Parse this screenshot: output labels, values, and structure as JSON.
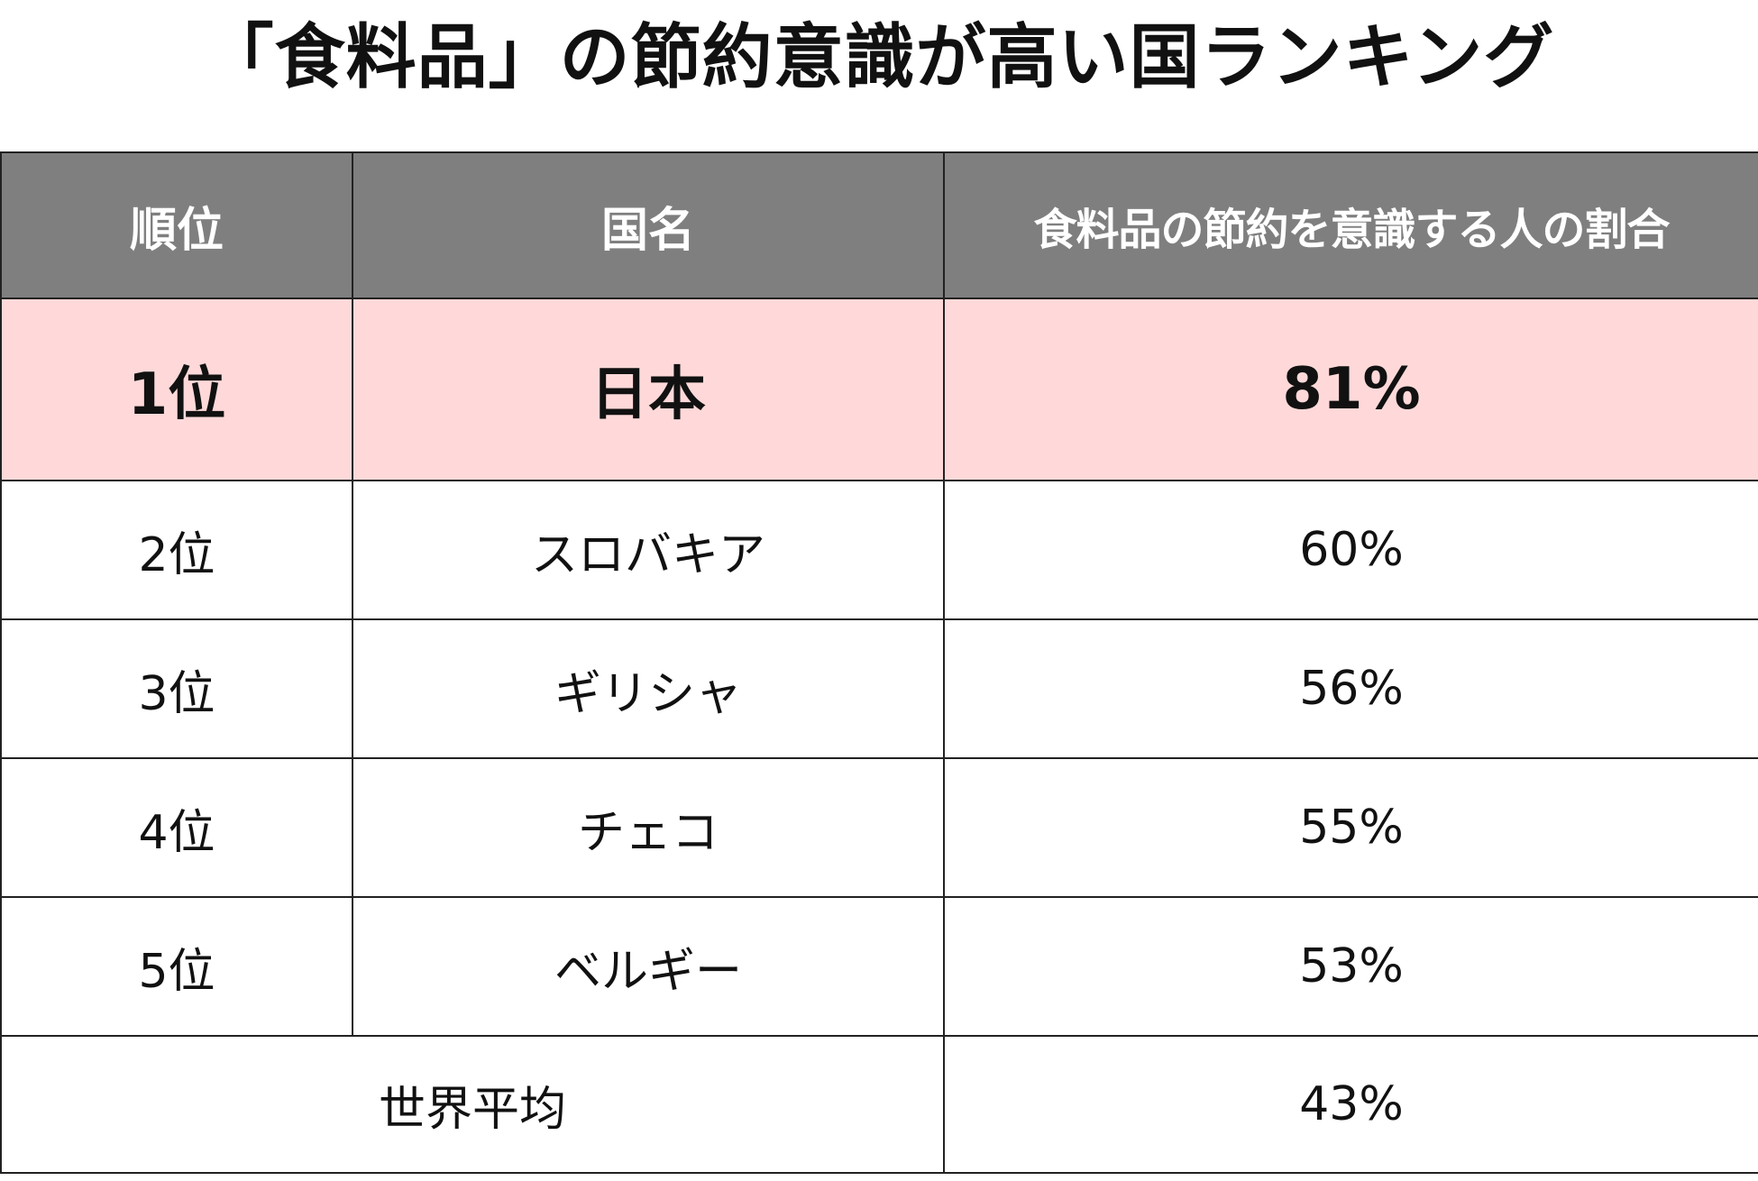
{
  "title": "「食料品」の節約意識が高い国ランキング",
  "colors": {
    "header_bg": "#7f7f7f",
    "header_text": "#ffffff",
    "highlight_row_bg": "#ffd9d9",
    "border": "#222222"
  },
  "chart_data": {
    "type": "table",
    "title": "「食料品」の節約意識が高い国ランキング",
    "columns": [
      "順位",
      "国名",
      "食料品の節約を意識する人の割合"
    ],
    "rows": [
      {
        "rank": "1位",
        "country": "日本",
        "value": "81%"
      },
      {
        "rank": "2位",
        "country": "スロバキア",
        "value": "60%"
      },
      {
        "rank": "3位",
        "country": "ギリシャ",
        "value": "56%"
      },
      {
        "rank": "4位",
        "country": "チェコ",
        "value": "55%"
      },
      {
        "rank": "5位",
        "country": "ベルギー",
        "value": "53%"
      }
    ],
    "average": {
      "label": "世界平均",
      "value": "43%"
    }
  }
}
